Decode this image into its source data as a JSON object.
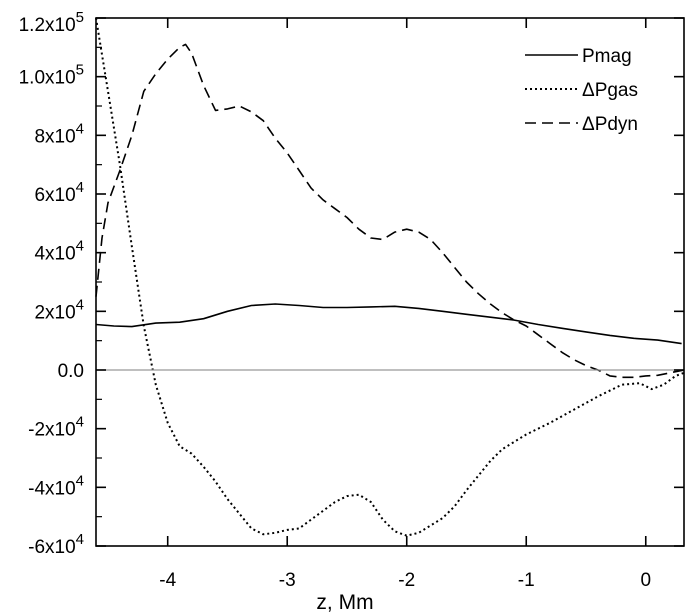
{
  "chart_data": {
    "type": "line",
    "title": "",
    "xlabel": "z, Mm",
    "ylabel": "",
    "xlim": [
      -4.6,
      0.32
    ],
    "ylim": [
      -60000,
      120000
    ],
    "grid": false,
    "legend_position": "top-right",
    "zero_line": true,
    "x_ticks": [
      {
        "value": -4,
        "label": "-4"
      },
      {
        "value": -3,
        "label": "-3"
      },
      {
        "value": -2,
        "label": "-2"
      },
      {
        "value": -1,
        "label": "-1"
      },
      {
        "value": 0,
        "label": "0"
      }
    ],
    "y_ticks": [
      {
        "value": 120000,
        "mant": "1.2x10",
        "exp": "5"
      },
      {
        "value": 100000,
        "mant": "1.0x10",
        "exp": "5"
      },
      {
        "value": 80000,
        "mant": "8x10",
        "exp": "4"
      },
      {
        "value": 60000,
        "mant": "6x10",
        "exp": "4"
      },
      {
        "value": 40000,
        "mant": "4x10",
        "exp": "4"
      },
      {
        "value": 20000,
        "mant": "2x10",
        "exp": "4"
      },
      {
        "value": 0,
        "mant": "0.0",
        "exp": ""
      },
      {
        "value": -20000,
        "mant": "-2x10",
        "exp": "4"
      },
      {
        "value": -40000,
        "mant": "-4x10",
        "exp": "4"
      },
      {
        "value": -60000,
        "mant": "-6x10",
        "exp": "4"
      }
    ],
    "series": [
      {
        "name": "Pmag",
        "style": "solid",
        "color": "#000000",
        "points": [
          [
            -4.6,
            15500
          ],
          [
            -4.45,
            15000
          ],
          [
            -4.3,
            14800
          ],
          [
            -4.1,
            16000
          ],
          [
            -3.9,
            16300
          ],
          [
            -3.7,
            17500
          ],
          [
            -3.5,
            20000
          ],
          [
            -3.3,
            22000
          ],
          [
            -3.1,
            22500
          ],
          [
            -2.9,
            22000
          ],
          [
            -2.7,
            21300
          ],
          [
            -2.5,
            21300
          ],
          [
            -2.3,
            21500
          ],
          [
            -2.1,
            21700
          ],
          [
            -1.9,
            21000
          ],
          [
            -1.7,
            20000
          ],
          [
            -1.5,
            19000
          ],
          [
            -1.3,
            18000
          ],
          [
            -1.1,
            17000
          ],
          [
            -0.9,
            15500
          ],
          [
            -0.7,
            14200
          ],
          [
            -0.5,
            13000
          ],
          [
            -0.3,
            11800
          ],
          [
            -0.1,
            10800
          ],
          [
            0.1,
            10200
          ],
          [
            0.3,
            9000
          ]
        ]
      },
      {
        "name": "ΔPgas",
        "style": "dotted",
        "color": "#000000",
        "points": [
          [
            -4.6,
            120000
          ],
          [
            -4.5,
            95000
          ],
          [
            -4.4,
            70000
          ],
          [
            -4.3,
            42000
          ],
          [
            -4.2,
            15000
          ],
          [
            -4.1,
            -5000
          ],
          [
            -4.0,
            -18000
          ],
          [
            -3.9,
            -26000
          ],
          [
            -3.8,
            -28500
          ],
          [
            -3.7,
            -33000
          ],
          [
            -3.6,
            -38000
          ],
          [
            -3.5,
            -44000
          ],
          [
            -3.4,
            -49000
          ],
          [
            -3.3,
            -54000
          ],
          [
            -3.2,
            -56000
          ],
          [
            -3.1,
            -55500
          ],
          [
            -3.0,
            -54500
          ],
          [
            -2.9,
            -54000
          ],
          [
            -2.8,
            -51000
          ],
          [
            -2.7,
            -48000
          ],
          [
            -2.6,
            -45000
          ],
          [
            -2.5,
            -43000
          ],
          [
            -2.4,
            -42500
          ],
          [
            -2.3,
            -45000
          ],
          [
            -2.2,
            -51000
          ],
          [
            -2.1,
            -55000
          ],
          [
            -2.0,
            -56500
          ],
          [
            -1.9,
            -55500
          ],
          [
            -1.8,
            -53000
          ],
          [
            -1.7,
            -50500
          ],
          [
            -1.6,
            -46500
          ],
          [
            -1.5,
            -41000
          ],
          [
            -1.4,
            -36000
          ],
          [
            -1.3,
            -31000
          ],
          [
            -1.2,
            -27000
          ],
          [
            -1.0,
            -22000
          ],
          [
            -0.8,
            -18000
          ],
          [
            -0.6,
            -13500
          ],
          [
            -0.4,
            -9000
          ],
          [
            -0.2,
            -5000
          ],
          [
            -0.05,
            -4500
          ],
          [
            0.05,
            -6500
          ],
          [
            0.15,
            -5000
          ],
          [
            0.25,
            -2000
          ],
          [
            0.32,
            -1000
          ]
        ]
      },
      {
        "name": "ΔPdyn",
        "style": "dashed",
        "color": "#000000",
        "points": [
          [
            -4.6,
            25000
          ],
          [
            -4.55,
            45000
          ],
          [
            -4.5,
            57000
          ],
          [
            -4.4,
            68000
          ],
          [
            -4.3,
            80000
          ],
          [
            -4.2,
            95000
          ],
          [
            -4.1,
            101000
          ],
          [
            -4.0,
            106000
          ],
          [
            -3.9,
            110000
          ],
          [
            -3.85,
            111000
          ],
          [
            -3.8,
            108000
          ],
          [
            -3.7,
            97000
          ],
          [
            -3.6,
            88500
          ],
          [
            -3.5,
            89000
          ],
          [
            -3.4,
            90000
          ],
          [
            -3.3,
            88000
          ],
          [
            -3.2,
            85000
          ],
          [
            -3.1,
            79000
          ],
          [
            -3.0,
            74000
          ],
          [
            -2.9,
            68000
          ],
          [
            -2.8,
            62000
          ],
          [
            -2.7,
            58000
          ],
          [
            -2.6,
            55000
          ],
          [
            -2.5,
            52000
          ],
          [
            -2.4,
            48000
          ],
          [
            -2.3,
            45000
          ],
          [
            -2.2,
            44500
          ],
          [
            -2.1,
            47000
          ],
          [
            -2.0,
            48000
          ],
          [
            -1.9,
            47000
          ],
          [
            -1.8,
            44500
          ],
          [
            -1.7,
            40000
          ],
          [
            -1.6,
            35000
          ],
          [
            -1.5,
            30000
          ],
          [
            -1.4,
            26000
          ],
          [
            -1.3,
            22500
          ],
          [
            -1.2,
            19500
          ],
          [
            -1.1,
            17000
          ],
          [
            -1.0,
            15000
          ],
          [
            -0.9,
            12000
          ],
          [
            -0.8,
            9000
          ],
          [
            -0.7,
            6000
          ],
          [
            -0.6,
            3500
          ],
          [
            -0.5,
            1500
          ],
          [
            -0.4,
            0
          ],
          [
            -0.3,
            -2000
          ],
          [
            -0.2,
            -2500
          ],
          [
            -0.1,
            -2500
          ],
          [
            0.0,
            -2000
          ],
          [
            0.1,
            -1800
          ],
          [
            0.2,
            -1000
          ],
          [
            0.32,
            0
          ]
        ]
      }
    ]
  }
}
